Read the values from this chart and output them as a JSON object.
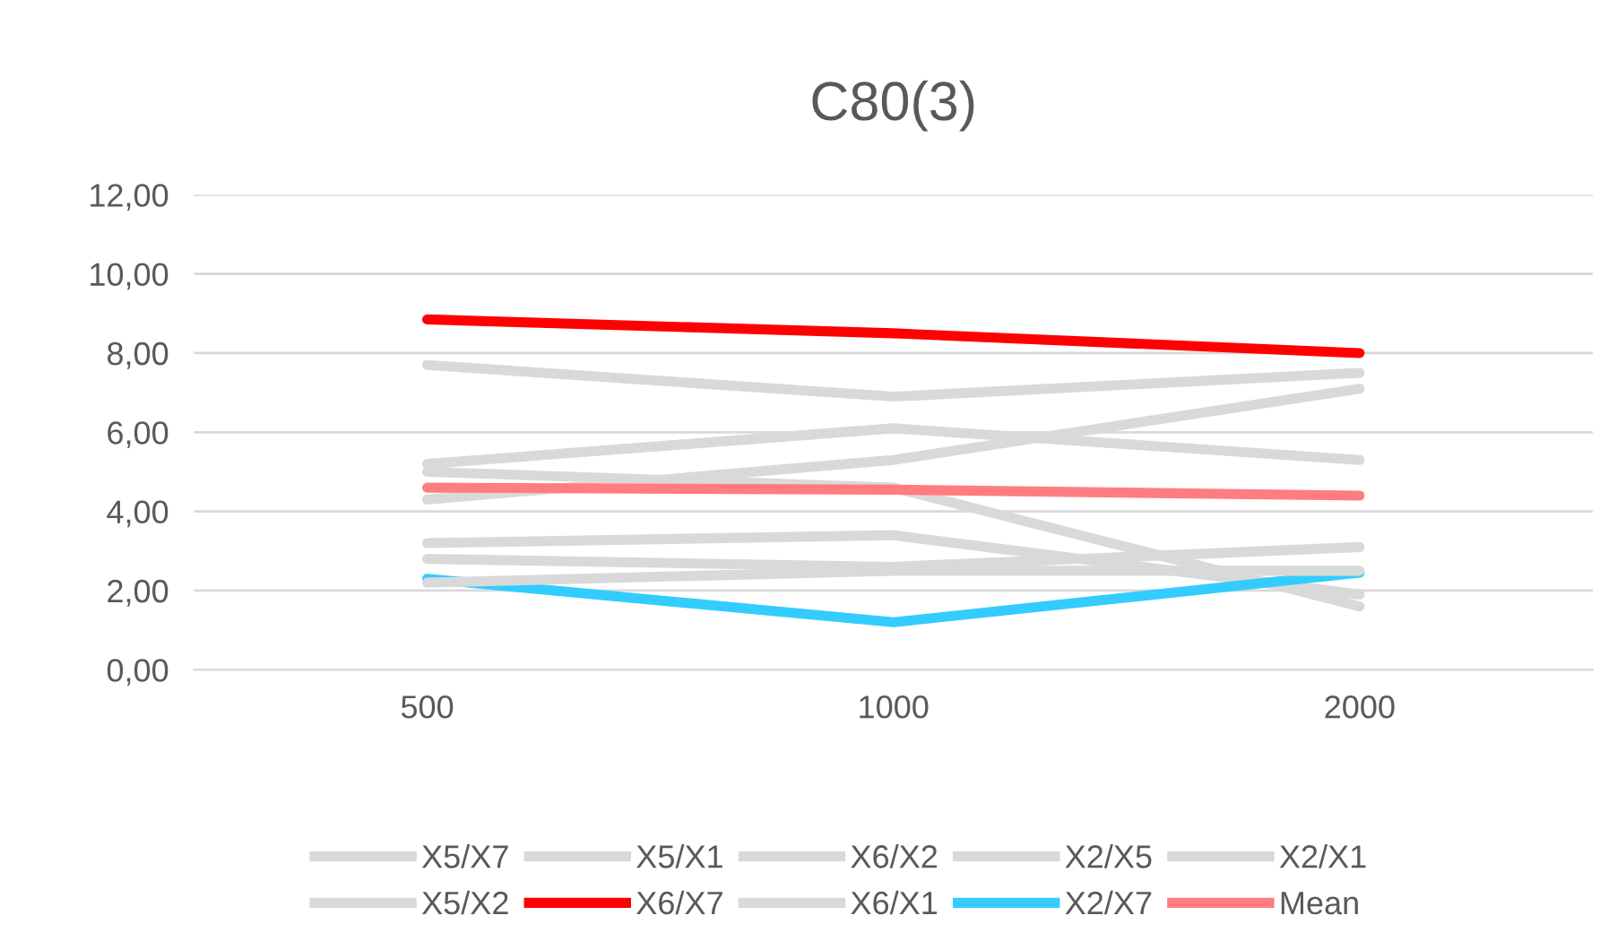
{
  "chart_data": {
    "type": "line",
    "title": "C80(3)",
    "categories": [
      "500",
      "1000",
      "2000"
    ],
    "series": [
      {
        "name": "X5/X7",
        "color": "#d9d9d9",
        "values": [
          7.7,
          6.9,
          7.5
        ]
      },
      {
        "name": "X5/X2",
        "color": "#d9d9d9",
        "values": [
          5.2,
          6.1,
          5.3
        ]
      },
      {
        "name": "X5/X1",
        "color": "#d9d9d9",
        "values": [
          5.0,
          4.6,
          1.6
        ]
      },
      {
        "name": "X6/X7",
        "color": "#ff0000",
        "values": [
          8.85,
          8.5,
          8.0
        ]
      },
      {
        "name": "X6/X2",
        "color": "#d9d9d9",
        "values": [
          4.3,
          5.3,
          7.1
        ]
      },
      {
        "name": "X6/X1",
        "color": "#d9d9d9",
        "values": [
          3.2,
          3.4,
          1.9
        ]
      },
      {
        "name": "X2/X5",
        "color": "#d9d9d9",
        "values": [
          2.8,
          2.6,
          3.1
        ]
      },
      {
        "name": "X2/X7",
        "color": "#33ccff",
        "values": [
          2.3,
          1.2,
          2.45
        ]
      },
      {
        "name": "X2/X1",
        "color": "#d9d9d9",
        "values": [
          2.2,
          2.5,
          2.5
        ]
      },
      {
        "name": "Mean",
        "color": "#ff7c80",
        "values": [
          4.6,
          4.55,
          4.4
        ]
      }
    ],
    "ylim": [
      0,
      12
    ],
    "yticks": [
      {
        "value": 0,
        "label": "0,00"
      },
      {
        "value": 2,
        "label": "2,00"
      },
      {
        "value": 4,
        "label": "4,00"
      },
      {
        "value": 6,
        "label": "6,00"
      },
      {
        "value": 8,
        "label": "8,00"
      },
      {
        "value": 10,
        "label": "10,00"
      },
      {
        "value": 12,
        "label": "12,00"
      }
    ],
    "grid": "y",
    "legend": "bottom",
    "marker": "none",
    "line_style": "solid"
  }
}
